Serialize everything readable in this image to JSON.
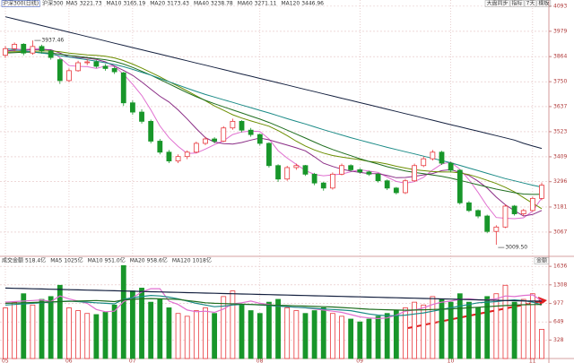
{
  "chart_data": [
    {
      "type": "candlestick",
      "title": "沪深300(日线)",
      "name": "沪深300",
      "categories": [
        "05",
        null,
        null,
        null,
        null,
        null,
        null,
        "06",
        null,
        null,
        null,
        null,
        null,
        null,
        "07",
        null,
        null,
        null,
        null,
        null,
        null,
        null,
        null,
        null,
        null,
        null,
        null,
        null,
        "08",
        null,
        null,
        null,
        null,
        null,
        null,
        null,
        null,
        null,
        null,
        "09",
        null,
        null,
        null,
        null,
        null,
        null,
        null,
        null,
        null,
        "10",
        null,
        null,
        null,
        null,
        null,
        null,
        null,
        null,
        "11",
        null
      ],
      "open": [
        3870,
        3900,
        3920,
        3880,
        3910,
        3890,
        3850,
        3755,
        3800,
        3836,
        3840,
        3820,
        3810,
        3790,
        3654,
        3612,
        3570,
        3480,
        3430,
        3390,
        3410,
        3430,
        3470,
        3490,
        3480,
        3540,
        3570,
        3530,
        3510,
        3470,
        3369,
        3308,
        3360,
        3369,
        3330,
        3290,
        3267,
        3330,
        3369,
        3350,
        3340,
        3330,
        3300,
        3267,
        3246,
        3300,
        3369,
        3400,
        3430,
        3380,
        3348,
        3200,
        3165,
        3140,
        3070,
        3090,
        3185,
        3150,
        3165,
        3220
      ],
      "high": [
        3912,
        3928,
        3925,
        3937.46,
        3918,
        3895,
        3858,
        3810,
        3845,
        3852,
        3848,
        3830,
        3818,
        3795,
        3665,
        3625,
        3578,
        3490,
        3440,
        3420,
        3438,
        3478,
        3500,
        3498,
        3548,
        3582,
        3575,
        3540,
        3515,
        3475,
        3375,
        3368,
        3378,
        3372,
        3336,
        3295,
        3338,
        3378,
        3375,
        3358,
        3346,
        3335,
        3306,
        3272,
        3308,
        3378,
        3410,
        3440,
        3436,
        3386,
        3352,
        3208,
        3170,
        3146,
        3098,
        3192,
        3190,
        3172,
        3228,
        3292
      ],
      "low": [
        3858,
        3888,
        3870,
        3872,
        3878,
        3850,
        3740,
        3748,
        3795,
        3825,
        3812,
        3800,
        3785,
        3640,
        3600,
        3560,
        3470,
        3420,
        3380,
        3380,
        3398,
        3425,
        3462,
        3470,
        3476,
        3532,
        3520,
        3500,
        3460,
        3360,
        3295,
        3300,
        3350,
        3322,
        3280,
        3255,
        3260,
        3325,
        3342,
        3332,
        3322,
        3292,
        3258,
        3238,
        3240,
        3295,
        3362,
        3392,
        3372,
        3340,
        3192,
        3158,
        3130,
        3062,
        3009.5,
        3085,
        3142,
        3140,
        3160,
        3212
      ],
      "close": [
        3900,
        3920,
        3880,
        3910,
        3890,
        3860,
        3755,
        3800,
        3836,
        3840,
        3820,
        3810,
        3795,
        3654,
        3612,
        3570,
        3480,
        3430,
        3390,
        3410,
        3430,
        3470,
        3490,
        3480,
        3540,
        3570,
        3530,
        3510,
        3470,
        3369,
        3308,
        3360,
        3369,
        3330,
        3290,
        3267,
        3330,
        3369,
        3350,
        3340,
        3330,
        3300,
        3267,
        3246,
        3300,
        3369,
        3400,
        3430,
        3380,
        3348,
        3200,
        3165,
        3140,
        3070,
        3090,
        3185,
        3150,
        3165,
        3220,
        3280
      ],
      "up_color": "#e8383d",
      "down_color": "#18962a",
      "series": [
        {
          "name": "MA5",
          "color": "#e06fd0",
          "values": [
            3895,
            3900,
            3895,
            3900,
            3900,
            3892,
            3859,
            3823,
            3820,
            3818,
            3810,
            3821,
            3820,
            3784,
            3738,
            3688,
            3622,
            3549,
            3496,
            3456,
            3424,
            3426,
            3444,
            3464,
            3482,
            3510,
            3522,
            3526,
            3524,
            3490,
            3437,
            3403,
            3375,
            3347,
            3329,
            3323,
            3327,
            3331,
            3341,
            3350,
            3344,
            3338,
            3317,
            3297,
            3289,
            3296,
            3316,
            3349,
            3376,
            3385,
            3352,
            3305,
            3247,
            3185,
            3133,
            3130,
            3128,
            3132,
            3162,
            3221.73
          ]
        },
        {
          "name": "MA10",
          "color": "#8a2d86",
          "values": [
            3890,
            3892,
            3893,
            3895,
            3896,
            3895,
            3880,
            3862,
            3860,
            3857,
            3851,
            3840,
            3821,
            3801,
            3779,
            3749,
            3716,
            3684,
            3658,
            3622,
            3581,
            3537,
            3496,
            3476,
            3469,
            3467,
            3474,
            3485,
            3494,
            3486,
            3474,
            3462,
            3450,
            3436,
            3409,
            3380,
            3365,
            3353,
            3344,
            3338,
            3333,
            3332,
            3324,
            3314,
            3315,
            3320,
            3327,
            3333,
            3346,
            3351,
            3338,
            3324,
            3298,
            3267,
            3226,
            3191,
            3164,
            3140,
            3147,
            3165.19
          ]
        },
        {
          "name": "MA20",
          "color": "#6b8e00",
          "values": [
            3885,
            3886,
            3887,
            3888,
            3889,
            3890,
            3886,
            3880,
            3876,
            3872,
            3870,
            3866,
            3858,
            3846,
            3830,
            3812,
            3792,
            3772,
            3750,
            3730,
            3708,
            3686,
            3664,
            3640,
            3620,
            3600,
            3585,
            3572,
            3560,
            3548,
            3528,
            3505,
            3480,
            3458,
            3440,
            3426,
            3415,
            3408,
            3402,
            3396,
            3388,
            3384,
            3376,
            3366,
            3358,
            3350,
            3346,
            3342,
            3340,
            3340,
            3336,
            3328,
            3316,
            3302,
            3288,
            3270,
            3250,
            3224,
            3198,
            3173.43
          ]
        },
        {
          "name": "MA40",
          "color": "#1f6e1f",
          "values": [
            3880,
            3882,
            3884,
            3884,
            3882,
            3880,
            3875,
            3870,
            3865,
            3860,
            3855,
            3850,
            3842,
            3830,
            3815,
            3798,
            3780,
            3760,
            3740,
            3720,
            3700,
            3682,
            3665,
            3650,
            3636,
            3622,
            3608,
            3594,
            3580,
            3565,
            3548,
            3530,
            3512,
            3494,
            3476,
            3458,
            3442,
            3428,
            3414,
            3400,
            3388,
            3376,
            3364,
            3354,
            3345,
            3338,
            3332,
            3326,
            3320,
            3312,
            3302,
            3292,
            3282,
            3272,
            3262,
            3254,
            3246,
            3240,
            3238,
            3238.78
          ]
        },
        {
          "name": "MA60",
          "color": "#1a8a86",
          "values": [
            3900,
            3895,
            3890,
            3885,
            3880,
            3875,
            3868,
            3862,
            3856,
            3850,
            3843,
            3836,
            3828,
            3818,
            3806,
            3793,
            3780,
            3765,
            3750,
            3735,
            3720,
            3706,
            3692,
            3680,
            3668,
            3656,
            3644,
            3632,
            3620,
            3608,
            3595,
            3582,
            3570,
            3558,
            3545,
            3532,
            3520,
            3508,
            3496,
            3485,
            3474,
            3463,
            3452,
            3442,
            3432,
            3422,
            3412,
            3402,
            3392,
            3382,
            3370,
            3358,
            3346,
            3334,
            3322,
            3310,
            3300,
            3290,
            3280,
            3271.11
          ]
        },
        {
          "name": "MA120",
          "color": "#14203f",
          "values": [
            4045,
            4035,
            4025,
            4015,
            4005,
            3995,
            3985,
            3975,
            3965,
            3955,
            3945,
            3935,
            3925,
            3915,
            3905,
            3895,
            3885,
            3875,
            3865,
            3855,
            3845,
            3835,
            3825,
            3815,
            3805,
            3795,
            3785,
            3775,
            3765,
            3755,
            3745,
            3735,
            3725,
            3715,
            3705,
            3695,
            3685,
            3675,
            3665,
            3655,
            3645,
            3635,
            3625,
            3615,
            3605,
            3595,
            3585,
            3575,
            3565,
            3555,
            3545,
            3535,
            3525,
            3515,
            3505,
            3495,
            3485,
            3470,
            3458,
            3446.96
          ]
        }
      ],
      "annotations": [
        {
          "value": 3937.46,
          "label": "3937.46"
        },
        {
          "value": 3009.5,
          "label": "3009.50"
        }
      ],
      "ylim": [
        2961,
        4121
      ],
      "yticks": [
        4093,
        3979,
        3864,
        3750,
        3637,
        3523,
        3409,
        3296,
        3181,
        3067
      ],
      "grid": true
    },
    {
      "type": "bar",
      "name": "成交金额",
      "label": "518.4亿",
      "button": "金额",
      "values": [
        900,
        1000,
        1150,
        950,
        1050,
        1100,
        1300,
        900,
        850,
        800,
        780,
        820,
        950,
        1650,
        1200,
        1250,
        1000,
        1050,
        900,
        800,
        750,
        850,
        900,
        800,
        1100,
        1200,
        950,
        850,
        800,
        1000,
        1050,
        900,
        850,
        800,
        850,
        900,
        800,
        750,
        700,
        650,
        700,
        750,
        800,
        850,
        900,
        1000,
        950,
        1100,
        1050,
        1000,
        1150,
        1000,
        900,
        1100,
        1150,
        1300,
        1000,
        1050,
        1150,
        518.4
      ],
      "series": [
        {
          "name": "MA5",
          "label": "1025亿",
          "color": "#e06fd0",
          "values": [
            1000,
            1010,
            1020,
            1030,
            1040,
            1010,
            1110,
            1060,
            1020,
            980,
            870,
            830,
            840,
            1010,
            1080,
            1180,
            1240,
            1240,
            1020,
            960,
            860,
            830,
            840,
            820,
            880,
            970,
            990,
            1020,
            980,
            960,
            930,
            920,
            910,
            900,
            880,
            860,
            840,
            820,
            780,
            740,
            720,
            710,
            720,
            770,
            840,
            860,
            900,
            960,
            1000,
            1020,
            1050,
            1060,
            1040,
            1040,
            1060,
            1110,
            1100,
            1120,
            1130,
            1025
          ]
        },
        {
          "name": "MA10",
          "label": "951.0亿",
          "color": "#1a8a86",
          "values": [
            950,
            960,
            970,
            980,
            990,
            1000,
            1010,
            1020,
            1010,
            1000,
            990,
            980,
            970,
            1050,
            1080,
            1100,
            1120,
            1110,
            1090,
            1060,
            1020,
            980,
            950,
            920,
            930,
            950,
            960,
            960,
            950,
            940,
            930,
            920,
            910,
            900,
            890,
            880,
            870,
            860,
            850,
            820,
            790,
            770,
            760,
            760,
            770,
            790,
            810,
            840,
            870,
            900,
            930,
            960,
            990,
            1000,
            1010,
            1030,
            1040,
            1030,
            1000,
            951
          ]
        },
        {
          "name": "MA20",
          "label": "958.6亿",
          "color": "#1f6e1f",
          "values": [
            980,
            985,
            990,
            995,
            1000,
            1005,
            1010,
            1015,
            1020,
            1025,
            1030,
            1020,
            1010,
            1040,
            1050,
            1060,
            1065,
            1060,
            1055,
            1050,
            1030,
            1010,
            990,
            980,
            975,
            970,
            965,
            960,
            955,
            950,
            945,
            940,
            935,
            930,
            925,
            920,
            915,
            905,
            895,
            885,
            875,
            870,
            865,
            860,
            858,
            860,
            865,
            870,
            875,
            880,
            890,
            900,
            910,
            920,
            930,
            940,
            950,
            955,
            958,
            958.6
          ]
        },
        {
          "name": "MA120",
          "label": "1018亿",
          "color": "#14203f",
          "values": [
            1250,
            1246,
            1242,
            1238,
            1234,
            1230,
            1226,
            1222,
            1218,
            1214,
            1210,
            1206,
            1202,
            1198,
            1194,
            1190,
            1186,
            1182,
            1178,
            1174,
            1170,
            1166,
            1162,
            1158,
            1154,
            1150,
            1146,
            1142,
            1138,
            1134,
            1130,
            1126,
            1122,
            1118,
            1114,
            1110,
            1106,
            1102,
            1098,
            1094,
            1090,
            1086,
            1082,
            1078,
            1074,
            1070,
            1066,
            1062,
            1058,
            1054,
            1050,
            1046,
            1042,
            1038,
            1034,
            1030,
            1026,
            1022,
            1020,
            1018
          ]
        }
      ],
      "ylim": [
        0,
        1750
      ],
      "yticks": [
        1636,
        1308,
        977,
        649,
        328
      ],
      "grid": true
    }
  ],
  "toolbar": [
    "大盘同步",
    "指标",
    "7天",
    "模板"
  ]
}
